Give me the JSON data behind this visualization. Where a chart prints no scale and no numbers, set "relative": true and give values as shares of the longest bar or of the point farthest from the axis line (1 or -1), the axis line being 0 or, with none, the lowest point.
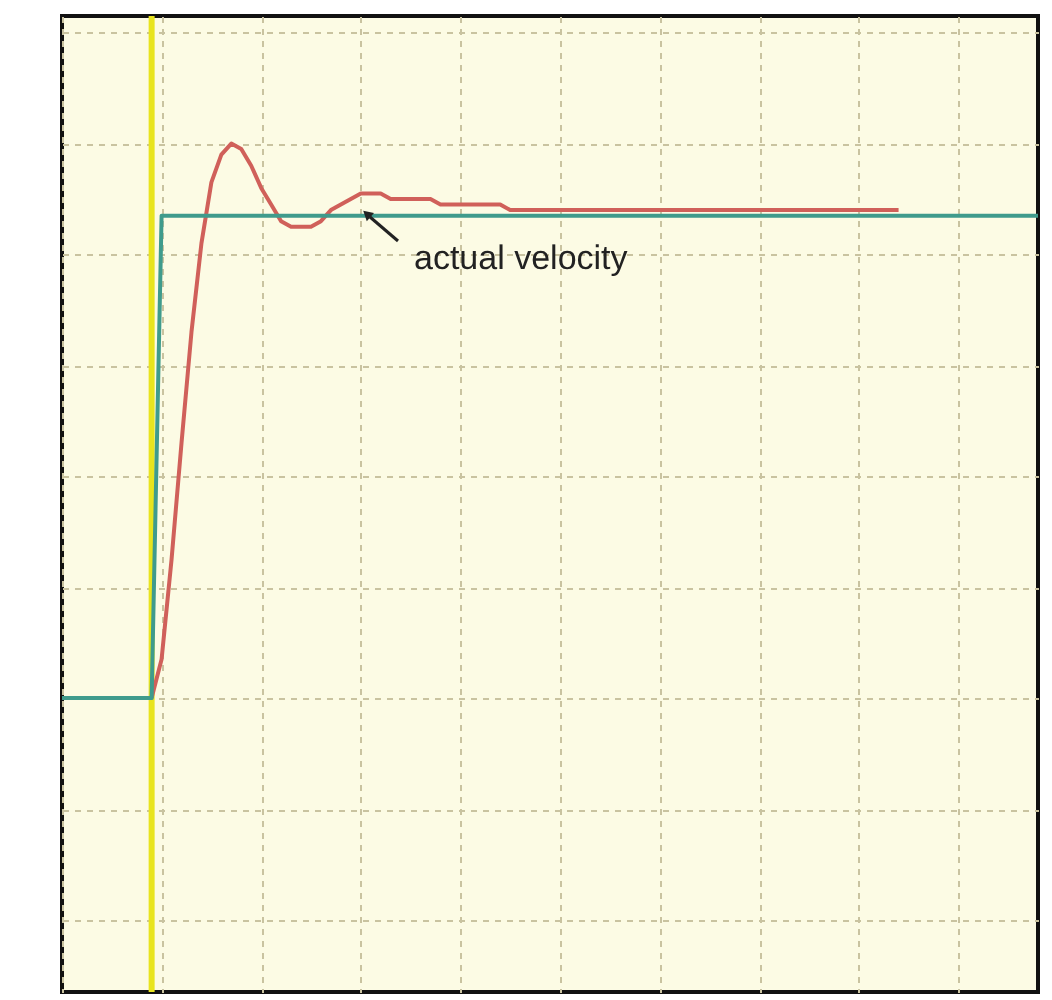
{
  "chart_data": {
    "type": "line",
    "relative": true,
    "grid": true,
    "tick_labels": false,
    "categories": [
      null,
      null,
      null,
      null,
      null,
      null,
      null,
      null,
      null,
      null,
      null,
      null,
      null,
      null,
      null,
      null,
      null,
      null,
      null,
      null,
      null,
      null,
      null,
      null,
      null,
      null,
      null,
      null,
      null,
      null,
      null,
      null,
      null,
      null,
      null,
      null,
      null,
      null,
      null,
      null,
      null,
      null,
      null,
      null,
      null,
      null,
      null,
      null,
      null,
      null,
      null,
      null,
      null,
      null,
      null,
      null,
      null,
      null,
      null,
      null,
      null,
      null,
      null,
      null,
      null,
      null,
      null,
      null,
      null,
      null,
      null,
      null,
      null,
      null,
      null,
      null,
      null,
      null,
      null,
      null,
      null,
      null,
      null,
      null,
      null,
      null,
      null,
      null,
      null,
      null,
      null,
      null,
      null,
      null,
      null,
      null,
      null,
      null,
      null
    ],
    "series": [
      {
        "color": "#3f9b8c",
        "values": [
          0,
          0,
          0,
          0,
          0,
          0,
          0,
          0,
          0,
          0,
          0.87,
          0.87,
          0.87,
          0.87,
          0.87,
          0.87,
          0.87,
          0.87,
          0.87,
          0.87,
          0.87,
          0.87,
          0.87,
          0.87,
          0.87,
          0.87,
          0.87,
          0.87,
          0.87,
          0.87,
          0.87,
          0.87,
          0.87,
          0.87,
          0.87,
          0.87,
          0.87,
          0.87,
          0.87,
          0.87,
          0.87,
          0.87,
          0.87,
          0.87,
          0.87,
          0.87,
          0.87,
          0.87,
          0.87,
          0.87,
          0.87,
          0.87,
          0.87,
          0.87,
          0.87,
          0.87,
          0.87,
          0.87,
          0.87,
          0.87,
          0.87,
          0.87,
          0.87,
          0.87,
          0.87,
          0.87,
          0.87,
          0.87,
          0.87,
          0.87,
          0.87,
          0.87,
          0.87,
          0.87,
          0.87,
          0.87,
          0.87,
          0.87,
          0.87,
          0.87,
          0.87,
          0.87,
          0.87,
          0.87,
          0.87,
          0.87,
          0.87,
          0.87,
          0.87,
          0.87,
          0.87,
          0.87,
          0.87,
          0.87,
          0.87,
          0.87,
          0.87,
          0.87,
          0.87
        ]
      },
      {
        "color": "#d0605a",
        "values": [
          null,
          null,
          null,
          null,
          null,
          null,
          null,
          null,
          null,
          0,
          0.07,
          0.25,
          0.46,
          0.66,
          0.82,
          0.93,
          0.98,
          1,
          0.99,
          0.96,
          0.92,
          0.89,
          0.86,
          0.85,
          0.85,
          0.85,
          0.86,
          0.88,
          0.89,
          0.9,
          0.91,
          0.91,
          0.91,
          0.9,
          0.9,
          0.9,
          0.9,
          0.9,
          0.89,
          0.89,
          0.89,
          0.89,
          0.89,
          0.89,
          0.89,
          0.88,
          0.88,
          0.88,
          0.88,
          0.88,
          0.88,
          0.88,
          0.88,
          0.88,
          0.88,
          0.88,
          0.88,
          0.88,
          0.88,
          0.88,
          0.88,
          0.88,
          0.88,
          0.88,
          0.88,
          0.88,
          0.88,
          0.88,
          0.88,
          0.88,
          0.88,
          0.88,
          0.88,
          0.88,
          0.88,
          0.88,
          0.88,
          0.88,
          0.88,
          0.88,
          0.88,
          0.88,
          0.88,
          0.88,
          0.88,
          null,
          null,
          null,
          null,
          null,
          null,
          null,
          null,
          null,
          null,
          null,
          null,
          null,
          null
        ]
      }
    ],
    "annotations": [
      {
        "text": "actual velocity",
        "y": 0.9
      }
    ]
  }
}
